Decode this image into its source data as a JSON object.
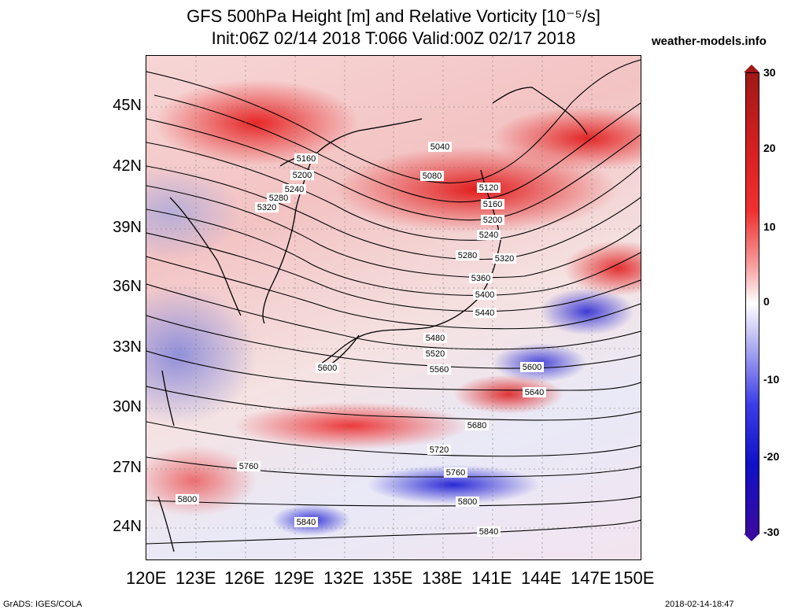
{
  "title": {
    "line1": "GFS 500hPa Height [m] and Relative Vorticity [10⁻⁵/s]",
    "line2": "Init:06Z 02/14 2018 T:066 Valid:00Z 02/17 2018"
  },
  "site": "weather-models.info",
  "lat_labels": [
    "45N",
    "42N",
    "39N",
    "36N",
    "33N",
    "30N",
    "27N",
    "24N"
  ],
  "lon_labels": [
    "120E",
    "123E",
    "126E",
    "129E",
    "132E",
    "135E",
    "138E",
    "141E",
    "144E",
    "147E",
    "150E"
  ],
  "colorbar": {
    "labels": [
      "30",
      "20",
      "10",
      "0",
      "-10",
      "-20",
      "-30"
    ],
    "colors": [
      "#a01818",
      "#f03030",
      "#ffffff",
      "#1010c8",
      "#3a0aa0"
    ]
  },
  "contour_labels": [
    "5040",
    "5080",
    "5120",
    "5160",
    "5200",
    "5240",
    "5280",
    "5320",
    "5360",
    "5400",
    "5440",
    "5480",
    "5520",
    "5560",
    "5600",
    "5640",
    "5680",
    "5720",
    "5760",
    "5800",
    "5840"
  ],
  "footer": {
    "left": "GrADS: IGES/COLA",
    "right": "2018-02-14-18:47"
  }
}
